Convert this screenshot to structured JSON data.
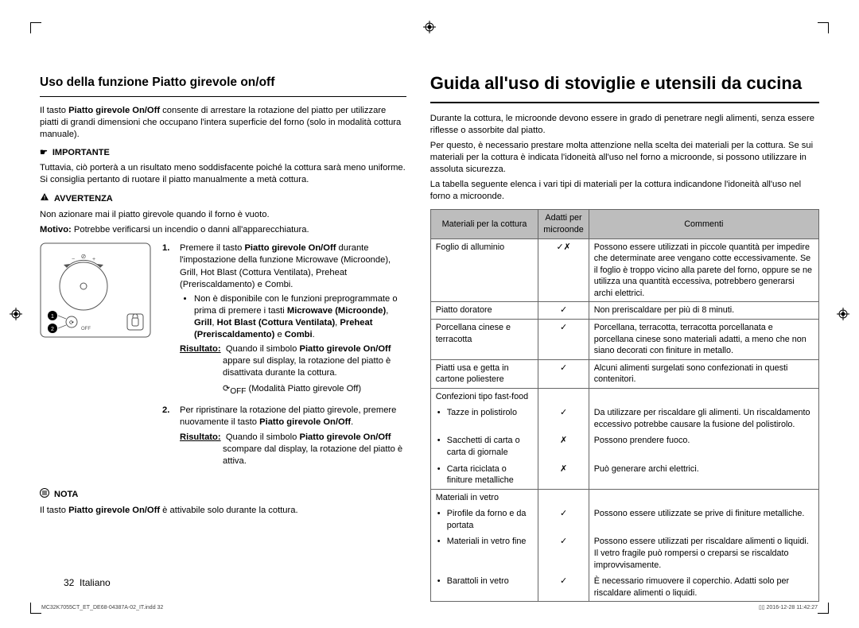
{
  "left": {
    "h2": "Uso della funzione Piatto girevole on/off",
    "intro1_a": "Il tasto ",
    "intro1_b": "Piatto girevole On/Off",
    "intro1_c": " consente di arrestare la rotazione del piatto per utilizzare piatti di grandi dimensioni che occupano l'intera superficie del forno (solo in modalità cottura manuale).",
    "importante_label": "IMPORTANTE",
    "importante_text": "Tuttavia, ciò porterà a un risultato meno soddisfacente poiché la cottura sarà meno uniforme. Si consiglia pertanto di ruotare il piatto manualmente a metà cottura.",
    "avvertenza_label": "AVVERTENZA",
    "avv1": "Non azionare mai il piatto girevole quando il forno è vuoto.",
    "avv2_a": "Motivo:",
    "avv2_b": " Potrebbe verificarsi un incendio o danni all'apparecchiatura.",
    "step1_a": "Premere il tasto ",
    "step1_b": "Piatto girevole On/Off",
    "step1_c": " durante l'impostazione della funzione Microwave (Microonde), Grill, Hot Blast (Cottura Ventilata), Preheat (Preriscaldamento) e Combi.",
    "bullet1": "Non è disponibile con le funzioni preprogrammate o prima di premere i tasti ",
    "bullet1_b": "Microwave (Microonde)",
    "bullet1_c": ", ",
    "bullet1_d": "Grill",
    "bullet1_e": ", ",
    "bullet1_f": "Hot Blast (Cottura Ventilata)",
    "bullet1_g": ", ",
    "bullet1_h": "Preheat (Preriscaldamento)",
    "bullet1_i": " e ",
    "bullet1_j": "Combi",
    "bullet1_k": ".",
    "ris1_label": "Risultato:",
    "ris1_a": "Quando il simbolo ",
    "ris1_b": "Piatto girevole On/Off",
    "ris1_c": " appare sul display, la rotazione del piatto è disattivata durante la cottura.",
    "ris1_mode": "(Modalità Piatto girevole Off)",
    "step2_a": "Per ripristinare la rotazione del piatto girevole, premere nuovamente il tasto ",
    "step2_b": "Piatto girevole On/Off",
    "step2_c": ".",
    "ris2_a": "Quando il simbolo ",
    "ris2_b": "Piatto girevole On/Off",
    "ris2_c": " scompare dal display, la rotazione del piatto è attiva.",
    "nota_label": "NOTA",
    "nota_a": "Il tasto ",
    "nota_b": "Piatto girevole On/Off",
    "nota_c": " è attivabile solo durante la cottura.",
    "off_label": "OFF"
  },
  "right": {
    "h1": "Guida all'uso di stoviglie e utensili da cucina",
    "p1": "Durante la cottura, le microonde devono essere in grado di penetrare negli alimenti, senza essere riflesse o assorbite dal piatto.",
    "p2": "Per questo, è necessario prestare molta attenzione nella scelta dei materiali per la cottura. Se sui materiali per la cottura è indicata l'idoneità all'uso nel forno a microonde, si possono utilizzare in assoluta sicurezza.",
    "p3": "La tabella seguente elenca i vari tipi di materiali per la cottura indicandone l'idoneità all'uso nel forno a microonde.",
    "th1": "Materiali per la cottura",
    "th2": "Adatti per microonde",
    "th3": "Commenti",
    "rows": [
      {
        "m": "Foglio di alluminio",
        "s": "✓✗",
        "c": "Possono essere utilizzati in piccole quantità per impedire che determinate aree vengano cotte eccessivamente. Se il foglio è troppo vicino alla parete del forno, oppure se ne utilizza una quantità eccessiva, potrebbero generarsi archi elettrici."
      },
      {
        "m": "Piatto doratore",
        "s": "✓",
        "c": "Non preriscaldare per più di 8 minuti."
      },
      {
        "m": "Porcellana cinese e terracotta",
        "s": "✓",
        "c": "Porcellana, terracotta, terracotta porcellanata e porcellana cinese sono materiali adatti, a meno che non siano decorati con finiture in metallo."
      },
      {
        "m": "Piatti usa e getta in cartone poliestere",
        "s": "✓",
        "c": "Alcuni alimenti surgelati sono confezionati in questi contenitori."
      },
      {
        "m": "Confezioni tipo fast-food",
        "s": "",
        "c": ""
      },
      {
        "m": "Tazze in polistirolo",
        "sub": true,
        "s": "✓",
        "c": "Da utilizzare per riscaldare gli alimenti. Un riscaldamento eccessivo potrebbe causare la fusione del polistirolo."
      },
      {
        "m": "Sacchetti di carta o carta di giornale",
        "sub": true,
        "s": "✗",
        "c": "Possono prendere fuoco."
      },
      {
        "m": "Carta riciclata o finiture metalliche",
        "sub": true,
        "s": "✗",
        "c": "Può generare archi elettrici."
      },
      {
        "m": "Materiali in vetro",
        "s": "",
        "c": ""
      },
      {
        "m": "Pirofile da forno e da portata",
        "sub": true,
        "s": "✓",
        "c": "Possono essere utilizzate se prive di finiture metalliche."
      },
      {
        "m": "Materiali in vetro fine",
        "sub": true,
        "s": "✓",
        "c": "Possono essere utilizzati per riscaldare alimenti o liquidi. Il vetro fragile può rompersi o creparsi se riscaldato improvvisamente."
      },
      {
        "m": "Barattoli in vetro",
        "sub": true,
        "s": "✓",
        "c": "È necessario rimuovere il coperchio. Adatti solo per riscaldare alimenti o liquidi."
      }
    ]
  },
  "footer": {
    "page": "32",
    "lang": "Italiano",
    "indd": "MC32K7055CT_ET_DE68-04387A-02_IT.indd   32",
    "date": "2016-12-28   11:42:27"
  }
}
